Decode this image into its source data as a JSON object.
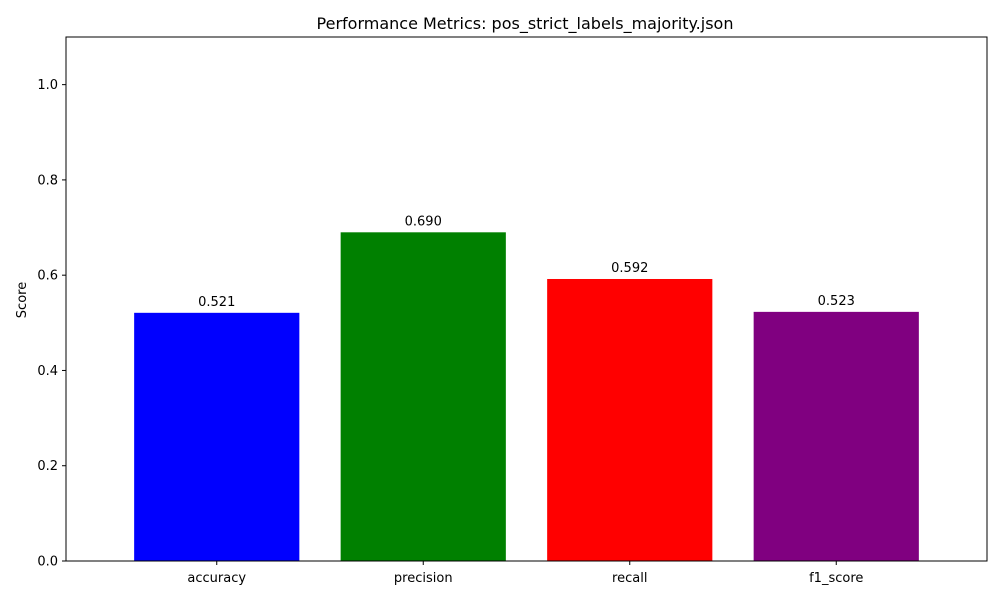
{
  "chart_data": {
    "type": "bar",
    "title": "Performance Metrics: pos_strict_labels_majority.json",
    "xlabel": "",
    "ylabel": "Score",
    "categories": [
      "accuracy",
      "precision",
      "recall",
      "f1_score"
    ],
    "values": [
      0.521,
      0.69,
      0.592,
      0.523
    ],
    "value_labels": [
      "0.521",
      "0.690",
      "0.592",
      "0.523"
    ],
    "colors": [
      "#0000ff",
      "#008000",
      "#ff0000",
      "#800080"
    ],
    "ylim": [
      0,
      1.1
    ],
    "yticks": [
      0.0,
      0.2,
      0.4,
      0.6,
      0.8,
      1.0
    ],
    "ytick_labels": [
      "0.0",
      "0.2",
      "0.4",
      "0.6",
      "0.8",
      "1.0"
    ],
    "grid": false,
    "legend": "none"
  }
}
